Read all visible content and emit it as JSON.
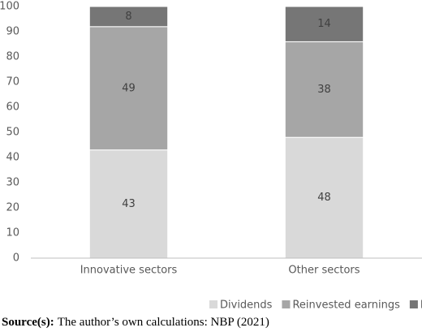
{
  "chart_data": {
    "type": "stacked_bar",
    "categories": [
      "Innovative sectors",
      "Other sectors"
    ],
    "series": [
      {
        "name": "Dividends",
        "color": "#d9d9d9",
        "values": [
          43,
          48
        ]
      },
      {
        "name": "Reinvested earnings",
        "color": "#a6a6a6",
        "values": [
          49,
          38
        ]
      },
      {
        "name": "Interest",
        "color": "#767676",
        "values": [
          8,
          14
        ]
      }
    ],
    "ylim": [
      0,
      100
    ],
    "yticks": [
      0,
      10,
      20,
      30,
      40,
      50,
      60,
      70,
      80,
      90,
      100
    ],
    "grid": false,
    "legend": "bottom",
    "source_label": "Source(s):",
    "source": "The author’s own calculations: NBP (2021)"
  }
}
